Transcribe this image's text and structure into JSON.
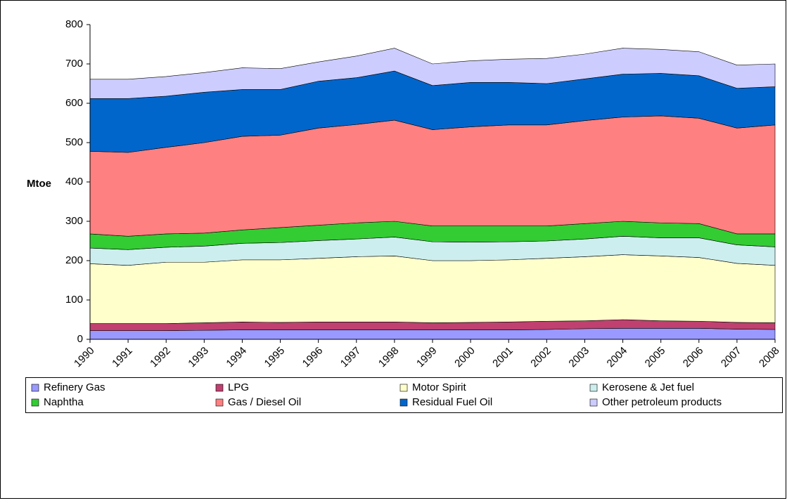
{
  "chart_data": {
    "type": "stacked-area",
    "y_label": "Mtoe",
    "categories": [
      "1990",
      "1991",
      "1992",
      "1993",
      "1994",
      "1995",
      "1996",
      "1997",
      "1998",
      "1999",
      "2000",
      "2001",
      "2002",
      "2003",
      "2004",
      "2005",
      "2006",
      "2007",
      "2008"
    ],
    "ylim": [
      0,
      800
    ],
    "yticks": [
      0,
      100,
      200,
      300,
      400,
      500,
      600,
      700,
      800
    ],
    "series": [
      {
        "name": "Refinery Gas",
        "color": "#9999ff",
        "values": [
          22,
          22,
          22,
          23,
          24,
          24,
          24,
          24,
          24,
          24,
          24,
          24,
          25,
          27,
          28,
          28,
          28,
          26,
          25
        ]
      },
      {
        "name": "LPG",
        "color": "#c04070",
        "values": [
          18,
          18,
          18,
          19,
          20,
          19,
          20,
          20,
          20,
          18,
          19,
          20,
          21,
          20,
          22,
          19,
          18,
          17,
          17
        ]
      },
      {
        "name": "Motor Spirit",
        "color": "#ffffcc",
        "values": [
          152,
          148,
          156,
          154,
          158,
          159,
          162,
          166,
          168,
          158,
          157,
          158,
          160,
          163,
          165,
          165,
          162,
          150,
          146
        ]
      },
      {
        "name": "Kerosene & Jet fuel",
        "color": "#cceeee",
        "values": [
          40,
          40,
          38,
          41,
          42,
          44,
          45,
          45,
          48,
          48,
          47,
          46,
          44,
          45,
          47,
          46,
          50,
          47,
          47
        ]
      },
      {
        "name": "Naphtha",
        "color": "#33cc33",
        "values": [
          36,
          34,
          34,
          33,
          34,
          38,
          39,
          41,
          40,
          40,
          41,
          40,
          38,
          39,
          38,
          38,
          36,
          28,
          33
        ]
      },
      {
        "name": "Gas / Diesel Oil",
        "color": "#ff8080",
        "values": [
          210,
          213,
          220,
          230,
          238,
          235,
          247,
          250,
          257,
          245,
          252,
          257,
          257,
          262,
          265,
          272,
          268,
          269,
          277
        ]
      },
      {
        "name": "Residual Fuel Oil",
        "color": "#0066cc",
        "values": [
          134,
          137,
          130,
          128,
          119,
          116,
          119,
          119,
          125,
          112,
          113,
          108,
          105,
          106,
          109,
          108,
          108,
          101,
          97
        ]
      },
      {
        "name": "Other petroleum products",
        "color": "#ccccff",
        "values": [
          49,
          49,
          50,
          50,
          55,
          53,
          49,
          55,
          58,
          55,
          55,
          59,
          64,
          63,
          66,
          61,
          61,
          59,
          58
        ]
      }
    ]
  }
}
